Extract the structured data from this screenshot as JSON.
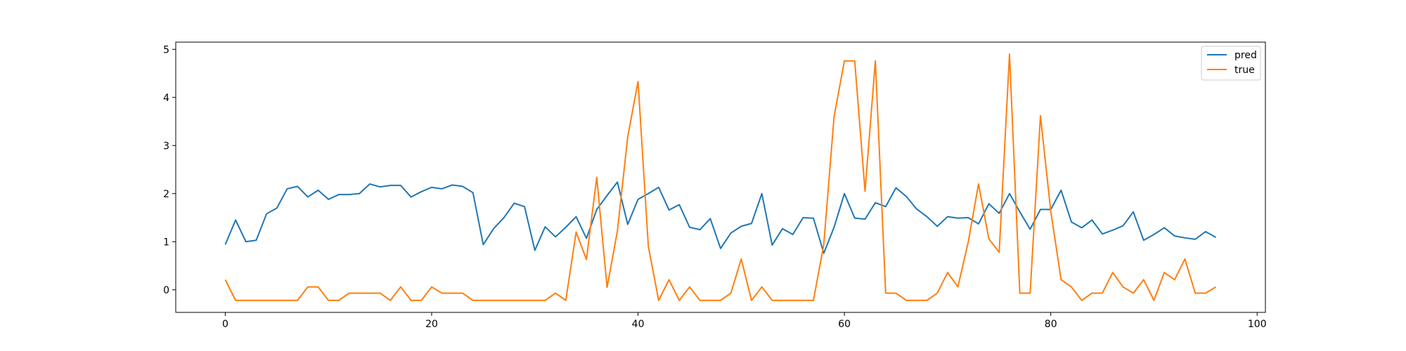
{
  "chart_data": {
    "type": "line",
    "title": "",
    "xlabel": "",
    "ylabel": "",
    "xlim": [
      -4.8,
      100.8
    ],
    "ylim": [
      -0.47,
      5.15
    ],
    "x_ticks": [
      0,
      20,
      40,
      60,
      80,
      100
    ],
    "y_ticks": [
      0,
      1,
      2,
      3,
      4,
      5
    ],
    "grid": false,
    "legend_position": "top-right",
    "series": [
      {
        "name": "pred",
        "color": "#1f77b4",
        "values": [
          0.94,
          1.45,
          1.0,
          1.03,
          1.58,
          1.7,
          2.1,
          2.15,
          1.93,
          2.07,
          1.88,
          1.98,
          1.98,
          2.0,
          2.2,
          2.14,
          2.17,
          2.17,
          1.93,
          2.04,
          2.13,
          2.1,
          2.18,
          2.15,
          2.02,
          0.94,
          1.27,
          1.5,
          1.8,
          1.73,
          0.82,
          1.31,
          1.1,
          1.3,
          1.52,
          1.07,
          1.67,
          1.96,
          2.24,
          1.36,
          1.88,
          2.0,
          2.13,
          1.66,
          1.77,
          1.3,
          1.25,
          1.48,
          0.86,
          1.18,
          1.32,
          1.38,
          2.0,
          0.93,
          1.27,
          1.15,
          1.5,
          1.49,
          0.76,
          1.3,
          2.0,
          1.49,
          1.47,
          1.81,
          1.73,
          2.12,
          1.94,
          1.68,
          1.52,
          1.32,
          1.52,
          1.49,
          1.5,
          1.37,
          1.79,
          1.59,
          2.0,
          1.62,
          1.26,
          1.67,
          1.67,
          2.07,
          1.41,
          1.29,
          1.45,
          1.16,
          1.24,
          1.33,
          1.62,
          1.03,
          1.15,
          1.29,
          1.12,
          1.08,
          1.05,
          1.21,
          1.09
        ]
      },
      {
        "name": "true",
        "color": "#ff7f0e",
        "values": [
          0.21,
          -0.22,
          -0.22,
          -0.22,
          -0.22,
          -0.22,
          -0.22,
          -0.22,
          0.06,
          0.06,
          -0.22,
          -0.22,
          -0.07,
          -0.07,
          -0.07,
          -0.07,
          -0.22,
          0.06,
          -0.22,
          -0.22,
          0.06,
          -0.07,
          -0.07,
          -0.07,
          -0.22,
          -0.22,
          -0.22,
          -0.22,
          -0.22,
          -0.22,
          -0.22,
          -0.22,
          -0.07,
          -0.22,
          1.2,
          0.63,
          2.34,
          0.05,
          1.22,
          3.18,
          4.33,
          0.9,
          -0.22,
          0.21,
          -0.22,
          0.06,
          -0.22,
          -0.22,
          -0.22,
          -0.07,
          0.64,
          -0.22,
          0.06,
          -0.22,
          -0.22,
          -0.22,
          -0.22,
          -0.22,
          0.94,
          3.6,
          4.76,
          4.76,
          2.05,
          4.76,
          -0.07,
          -0.07,
          -0.22,
          -0.22,
          -0.22,
          -0.07,
          0.36,
          0.06,
          0.99,
          2.2,
          1.06,
          0.78,
          4.9,
          -0.07,
          -0.07,
          3.62,
          1.63,
          0.21,
          0.06,
          -0.22,
          -0.07,
          -0.07,
          0.36,
          0.06,
          -0.07,
          0.21,
          -0.22,
          0.36,
          0.21,
          0.64,
          -0.07,
          -0.07,
          0.06
        ]
      }
    ]
  }
}
